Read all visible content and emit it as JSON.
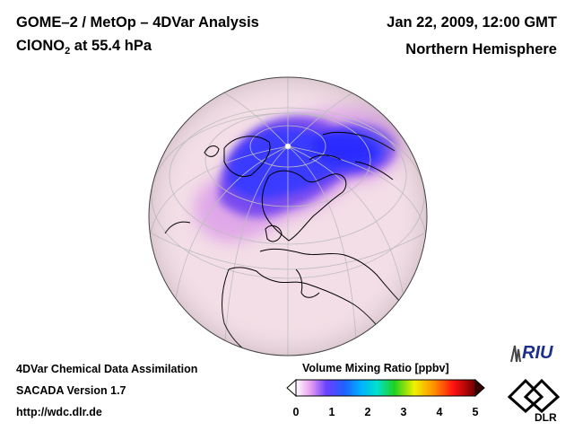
{
  "header": {
    "title_line1": "GOME–2 / MetOp – 4DVar Analysis",
    "species_main": "ClONO",
    "species_sub": "2",
    "species_rest": " at 55.4 hPa",
    "date": "Jan 22, 2009, 12:00 GMT",
    "region": "Northern Hemisphere"
  },
  "footer": {
    "line1": "4DVar Chemical Data Assimilation",
    "line2": "SACADA Version 1.7",
    "line3": "http://wdc.dlr.de"
  },
  "colorbar": {
    "title": "Volume Mixing Ratio [ppbv]",
    "ticks": [
      "0",
      "1",
      "2",
      "3",
      "4",
      "5"
    ],
    "range": [
      0,
      5
    ],
    "colors": [
      "#ffffff",
      "#e8a0f0",
      "#b040ff",
      "#3030ff",
      "#00a0ff",
      "#00e0e0",
      "#00d000",
      "#f0f000",
      "#ff8000",
      "#ff0000",
      "#a00000",
      "#400000"
    ]
  },
  "logos": {
    "riu": "RIU",
    "dlr": "DLR"
  },
  "map_colors": {
    "background_field": "#f3dde6",
    "low_field": "#3a3aff",
    "mid_field": "#b050f0",
    "grid": "#bdbdbd",
    "coast": "#000000"
  }
}
